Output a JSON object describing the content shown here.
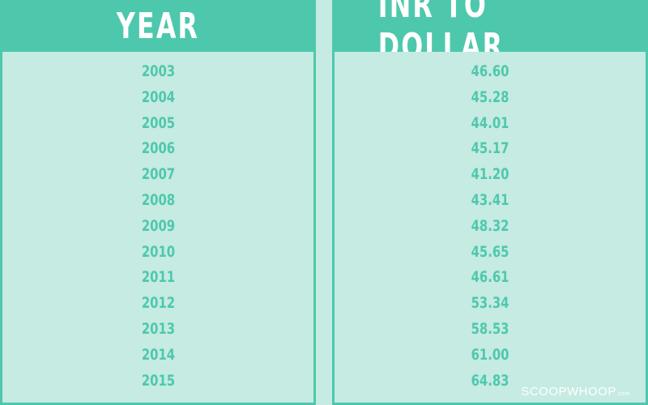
{
  "chart_data": {
    "type": "table",
    "columns": [
      "YEAR",
      "INR TO DOLLAR"
    ],
    "rows": [
      [
        "2003",
        "46.60"
      ],
      [
        "2004",
        "45.28"
      ],
      [
        "2005",
        "44.01"
      ],
      [
        "2006",
        "45.17"
      ],
      [
        "2007",
        "41.20"
      ],
      [
        "2008",
        "43.41"
      ],
      [
        "2009",
        "48.32"
      ],
      [
        "2010",
        "45.65"
      ],
      [
        "2011",
        "46.61"
      ],
      [
        "2012",
        "53.34"
      ],
      [
        "2013",
        "58.53"
      ],
      [
        "2014",
        "61.00"
      ],
      [
        "2015",
        "64.83"
      ]
    ]
  },
  "brand": {
    "name": "SCOOPWHOOP",
    "suffix": ".com"
  },
  "colors": {
    "accent": "#4ec8ad",
    "background": "#c5ebe2",
    "header_text": "#ffffff"
  }
}
